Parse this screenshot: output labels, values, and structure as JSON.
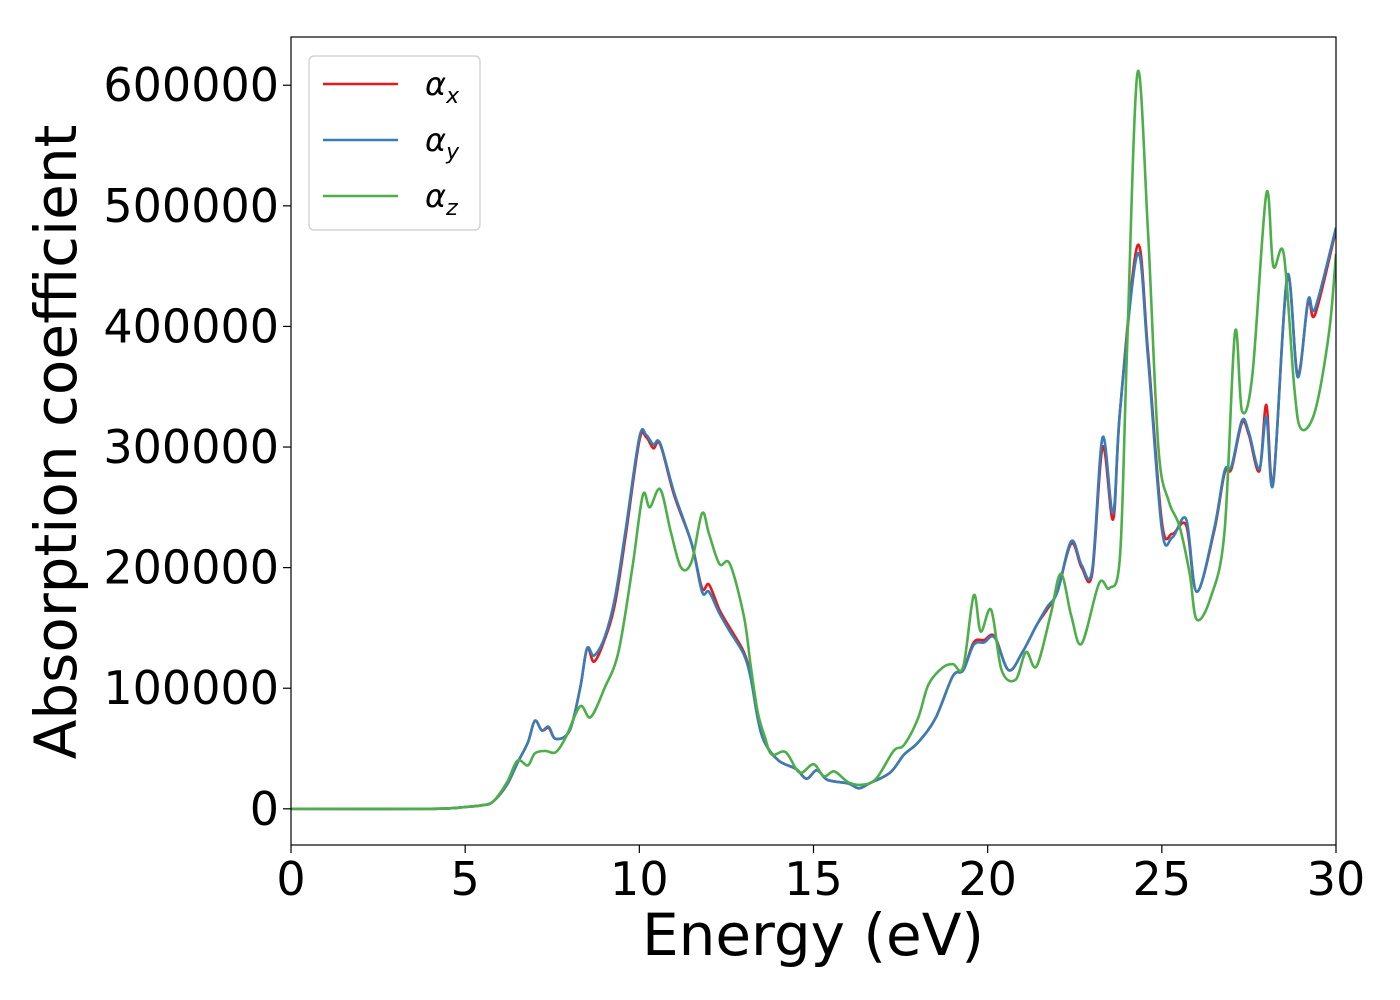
{
  "chart_data": {
    "type": "line",
    "xlabel": "Energy (eV)",
    "ylabel": "Absorption coefficient",
    "xlim": [
      0,
      30
    ],
    "ylim": [
      -30000,
      640000
    ],
    "xticks": [
      "0",
      "5",
      "10",
      "15",
      "20",
      "25",
      "30"
    ],
    "yticks": [
      "0",
      "100000",
      "200000",
      "300000",
      "400000",
      "500000",
      "600000"
    ],
    "grid": false,
    "legend_position": "top-left",
    "series": [
      {
        "name": "α",
        "subscript": "x",
        "color": "#e41a1c",
        "points": [
          [
            0,
            0
          ],
          [
            4,
            0
          ],
          [
            5,
            1500
          ],
          [
            5.5,
            3000
          ],
          [
            5.8,
            6000
          ],
          [
            6.2,
            20000
          ],
          [
            6.5,
            38000
          ],
          [
            6.8,
            55000
          ],
          [
            7.0,
            73000
          ],
          [
            7.2,
            65000
          ],
          [
            7.4,
            67000
          ],
          [
            7.6,
            58000
          ],
          [
            8.0,
            65000
          ],
          [
            8.3,
            100000
          ],
          [
            8.5,
            133000
          ],
          [
            8.7,
            122000
          ],
          [
            9.0,
            140000
          ],
          [
            9.3,
            170000
          ],
          [
            9.6,
            225000
          ],
          [
            10.0,
            305000
          ],
          [
            10.2,
            308000
          ],
          [
            10.4,
            299000
          ],
          [
            10.6,
            302000
          ],
          [
            11.0,
            260000
          ],
          [
            11.5,
            220000
          ],
          [
            11.8,
            183000
          ],
          [
            12.0,
            186000
          ],
          [
            12.3,
            165000
          ],
          [
            12.6,
            150000
          ],
          [
            13.0,
            130000
          ],
          [
            13.2,
            110000
          ],
          [
            13.4,
            75000
          ],
          [
            13.6,
            55000
          ],
          [
            14.0,
            40000
          ],
          [
            14.5,
            33000
          ],
          [
            14.8,
            25000
          ],
          [
            15.1,
            32000
          ],
          [
            15.4,
            24000
          ],
          [
            16.0,
            21000
          ],
          [
            16.3,
            17000
          ],
          [
            16.6,
            21000
          ],
          [
            17.2,
            30000
          ],
          [
            17.6,
            45000
          ],
          [
            18.0,
            55000
          ],
          [
            18.5,
            75000
          ],
          [
            19.0,
            110000
          ],
          [
            19.3,
            115000
          ],
          [
            19.6,
            138000
          ],
          [
            19.9,
            140000
          ],
          [
            20.2,
            143000
          ],
          [
            20.6,
            115000
          ],
          [
            21.0,
            130000
          ],
          [
            21.4,
            152000
          ],
          [
            21.7,
            165000
          ],
          [
            22.0,
            180000
          ],
          [
            22.4,
            220000
          ],
          [
            22.7,
            200000
          ],
          [
            23.0,
            195000
          ],
          [
            23.3,
            300000
          ],
          [
            23.6,
            240000
          ],
          [
            23.8,
            330000
          ],
          [
            24.3,
            467000
          ],
          [
            24.6,
            380000
          ],
          [
            25.0,
            238000
          ],
          [
            25.3,
            228000
          ],
          [
            25.7,
            235000
          ],
          [
            26.0,
            180000
          ],
          [
            26.5,
            230000
          ],
          [
            26.8,
            278000
          ],
          [
            27.0,
            282000
          ],
          [
            27.3,
            320000
          ],
          [
            27.5,
            310000
          ],
          [
            27.8,
            280000
          ],
          [
            28.0,
            335000
          ],
          [
            28.2,
            272000
          ],
          [
            28.6,
            440000
          ],
          [
            28.9,
            360000
          ],
          [
            29.2,
            420000
          ],
          [
            29.4,
            410000
          ],
          [
            30.0,
            480000
          ]
        ]
      },
      {
        "name": "α",
        "subscript": "y",
        "color": "#377eb8",
        "points": [
          [
            0,
            0
          ],
          [
            4,
            0
          ],
          [
            5,
            1500
          ],
          [
            5.5,
            3000
          ],
          [
            5.8,
            6000
          ],
          [
            6.2,
            20000
          ],
          [
            6.5,
            38000
          ],
          [
            6.8,
            55000
          ],
          [
            7.0,
            73000
          ],
          [
            7.2,
            65000
          ],
          [
            7.4,
            68000
          ],
          [
            7.6,
            58000
          ],
          [
            8.0,
            65000
          ],
          [
            8.3,
            100000
          ],
          [
            8.5,
            133000
          ],
          [
            8.7,
            127000
          ],
          [
            9.0,
            142000
          ],
          [
            9.3,
            175000
          ],
          [
            9.6,
            230000
          ],
          [
            10.0,
            308000
          ],
          [
            10.2,
            310000
          ],
          [
            10.4,
            302000
          ],
          [
            10.6,
            303000
          ],
          [
            11.0,
            262000
          ],
          [
            11.5,
            220000
          ],
          [
            11.8,
            180000
          ],
          [
            12.0,
            180000
          ],
          [
            12.3,
            162000
          ],
          [
            12.6,
            147000
          ],
          [
            13.0,
            128000
          ],
          [
            13.2,
            108000
          ],
          [
            13.4,
            75000
          ],
          [
            13.6,
            55000
          ],
          [
            14.0,
            40000
          ],
          [
            14.5,
            33000
          ],
          [
            14.8,
            25000
          ],
          [
            15.1,
            32000
          ],
          [
            15.4,
            24000
          ],
          [
            16.0,
            21000
          ],
          [
            16.3,
            17000
          ],
          [
            16.6,
            21000
          ],
          [
            17.2,
            30000
          ],
          [
            17.6,
            45000
          ],
          [
            18.0,
            55000
          ],
          [
            18.5,
            75000
          ],
          [
            19.0,
            110000
          ],
          [
            19.3,
            115000
          ],
          [
            19.6,
            136000
          ],
          [
            19.9,
            138000
          ],
          [
            20.2,
            142000
          ],
          [
            20.6,
            115000
          ],
          [
            21.0,
            130000
          ],
          [
            21.4,
            152000
          ],
          [
            21.7,
            167000
          ],
          [
            22.0,
            180000
          ],
          [
            22.4,
            222000
          ],
          [
            22.7,
            202000
          ],
          [
            23.0,
            198000
          ],
          [
            23.3,
            308000
          ],
          [
            23.6,
            245000
          ],
          [
            23.8,
            330000
          ],
          [
            24.3,
            460000
          ],
          [
            24.6,
            375000
          ],
          [
            25.0,
            232000
          ],
          [
            25.3,
            225000
          ],
          [
            25.7,
            240000
          ],
          [
            26.0,
            180000
          ],
          [
            26.5,
            232000
          ],
          [
            26.8,
            280000
          ],
          [
            27.0,
            284000
          ],
          [
            27.3,
            322000
          ],
          [
            27.5,
            312000
          ],
          [
            27.8,
            282000
          ],
          [
            28.0,
            325000
          ],
          [
            28.2,
            270000
          ],
          [
            28.6,
            442000
          ],
          [
            28.9,
            358000
          ],
          [
            29.2,
            422000
          ],
          [
            29.4,
            415000
          ],
          [
            30.0,
            482000
          ]
        ]
      },
      {
        "name": "α",
        "subscript": "z",
        "color": "#4daf4a",
        "points": [
          [
            0,
            0
          ],
          [
            4,
            0
          ],
          [
            5,
            1500
          ],
          [
            5.5,
            3000
          ],
          [
            5.8,
            6000
          ],
          [
            6.2,
            22000
          ],
          [
            6.5,
            40000
          ],
          [
            6.8,
            36000
          ],
          [
            7.0,
            46000
          ],
          [
            7.3,
            48000
          ],
          [
            7.6,
            47000
          ],
          [
            7.9,
            60000
          ],
          [
            8.3,
            85000
          ],
          [
            8.6,
            76000
          ],
          [
            9.0,
            100000
          ],
          [
            9.4,
            130000
          ],
          [
            9.8,
            200000
          ],
          [
            10.1,
            260000
          ],
          [
            10.3,
            250000
          ],
          [
            10.6,
            265000
          ],
          [
            10.9,
            230000
          ],
          [
            11.2,
            200000
          ],
          [
            11.5,
            205000
          ],
          [
            11.8,
            245000
          ],
          [
            12.0,
            228000
          ],
          [
            12.3,
            203000
          ],
          [
            12.6,
            203000
          ],
          [
            13.0,
            160000
          ],
          [
            13.2,
            118000
          ],
          [
            13.4,
            80000
          ],
          [
            13.6,
            60000
          ],
          [
            13.8,
            45000
          ],
          [
            14.2,
            47000
          ],
          [
            14.6,
            30000
          ],
          [
            15.0,
            37000
          ],
          [
            15.3,
            27000
          ],
          [
            15.6,
            31000
          ],
          [
            16.0,
            22000
          ],
          [
            16.4,
            20000
          ],
          [
            16.8,
            25000
          ],
          [
            17.3,
            48000
          ],
          [
            17.6,
            53000
          ],
          [
            18.0,
            75000
          ],
          [
            18.3,
            103000
          ],
          [
            18.7,
            117000
          ],
          [
            19.0,
            120000
          ],
          [
            19.3,
            118000
          ],
          [
            19.6,
            177000
          ],
          [
            19.8,
            147000
          ],
          [
            20.1,
            165000
          ],
          [
            20.4,
            115000
          ],
          [
            20.8,
            107000
          ],
          [
            21.1,
            130000
          ],
          [
            21.4,
            118000
          ],
          [
            21.8,
            160000
          ],
          [
            22.1,
            195000
          ],
          [
            22.4,
            160000
          ],
          [
            22.7,
            137000
          ],
          [
            23.2,
            187000
          ],
          [
            23.5,
            183000
          ],
          [
            23.8,
            210000
          ],
          [
            24.0,
            380000
          ],
          [
            24.3,
            610000
          ],
          [
            24.6,
            480000
          ],
          [
            24.9,
            300000
          ],
          [
            25.2,
            255000
          ],
          [
            25.5,
            235000
          ],
          [
            25.8,
            195000
          ],
          [
            26.0,
            157000
          ],
          [
            26.4,
            175000
          ],
          [
            26.8,
            230000
          ],
          [
            27.1,
            395000
          ],
          [
            27.3,
            330000
          ],
          [
            27.6,
            360000
          ],
          [
            28.0,
            510000
          ],
          [
            28.2,
            450000
          ],
          [
            28.5,
            460000
          ],
          [
            28.8,
            350000
          ],
          [
            29.0,
            315000
          ],
          [
            29.4,
            330000
          ],
          [
            29.8,
            395000
          ],
          [
            30.0,
            460000
          ]
        ]
      }
    ]
  }
}
